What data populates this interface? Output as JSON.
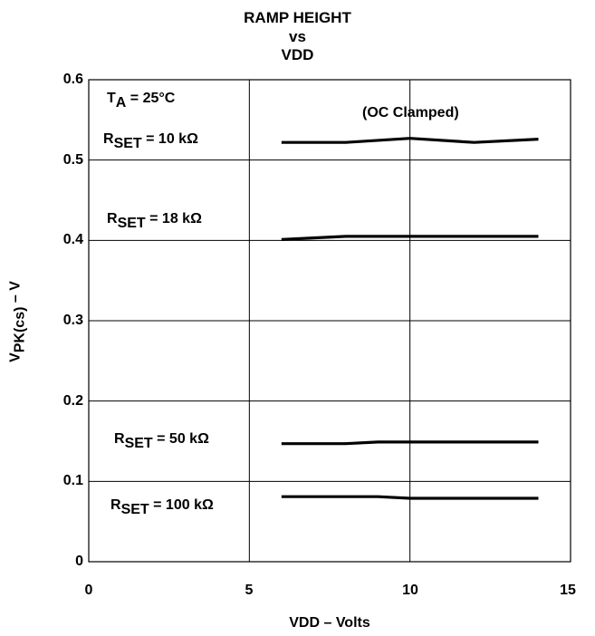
{
  "chart_data": {
    "type": "line",
    "title_lines": [
      "RAMP HEIGHT",
      "vs",
      "VDD"
    ],
    "xlabel": "VDD – Volts",
    "ylabel": "V",
    "ylabel_sub": "PK(cs)",
    "ylabel_suffix": " – V",
    "xlim": [
      0,
      15
    ],
    "ylim": [
      0,
      0.6
    ],
    "x_ticks": [
      "0",
      "5",
      "10",
      "15"
    ],
    "y_ticks": [
      "0",
      "0.1",
      "0.2",
      "0.3",
      "0.4",
      "0.5",
      "0.6"
    ],
    "grid": true,
    "series": [
      {
        "name": "R",
        "name_sub": "SET",
        "name_suffix": " = 10 kΩ",
        "x": [
          6,
          8,
          10,
          12,
          14
        ],
        "y": [
          0.522,
          0.522,
          0.527,
          0.522,
          0.526
        ]
      },
      {
        "name": "R",
        "name_sub": "SET",
        "name_suffix": " = 18 kΩ",
        "x": [
          6,
          8,
          10,
          12,
          14
        ],
        "y": [
          0.401,
          0.405,
          0.405,
          0.405,
          0.405
        ]
      },
      {
        "name": "R",
        "name_sub": "SET",
        "name_suffix": " = 50 kΩ",
        "x": [
          6,
          8,
          9,
          10,
          12,
          14
        ],
        "y": [
          0.147,
          0.147,
          0.149,
          0.149,
          0.149,
          0.149
        ]
      },
      {
        "name": "R",
        "name_sub": "SET",
        "name_suffix": " = 100 kΩ",
        "x": [
          6,
          8,
          9,
          10,
          12,
          14
        ],
        "y": [
          0.081,
          0.081,
          0.081,
          0.079,
          0.079,
          0.079
        ]
      }
    ],
    "annotations": {
      "temp_main": "T",
      "temp_sub": "A",
      "temp_suffix": " = 25°C",
      "clamp": "(OC Clamped)"
    },
    "line_color": "#000000"
  }
}
